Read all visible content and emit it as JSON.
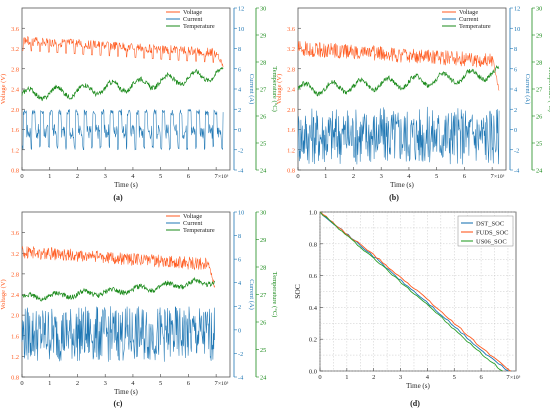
{
  "colors": {
    "voltage": "#ff5a1f",
    "current": "#1f77b4",
    "temperature": "#1a8a1a",
    "voltage_axis": "#ff5a1f",
    "current_axis": "#1f77b4",
    "temperature_axis": "#1a8a1a",
    "dst": "#1f77b4",
    "fuds": "#ff5a1f",
    "us06": "#2ca02c"
  },
  "chart_data": [
    {
      "type": "line",
      "panel_label": "(a)",
      "xlabel": "Time (s)",
      "x_multiplier": "×10³",
      "xlim": [
        0,
        7.5
      ],
      "xticks": [
        "0",
        "1",
        "2",
        "3",
        "4",
        "5",
        "6",
        "7"
      ],
      "legend": [
        "Voltage",
        "Current",
        "Temperature"
      ],
      "legend_position": "top-right",
      "axes": {
        "voltage": {
          "label": "Voltage (V)",
          "lim": [
            0.8,
            4.0
          ],
          "ticks": [
            "0.8",
            "1.2",
            "1.6",
            "2.0",
            "2.4",
            "2.8",
            "3.2",
            "3.6"
          ]
        },
        "current": {
          "label": "Current (A)",
          "lim": [
            -4,
            12
          ],
          "ticks": [
            "-4",
            "-2",
            "0",
            "2",
            "4",
            "6",
            "8",
            "10",
            "12"
          ]
        },
        "temperature": {
          "label": "Temperature (°C)",
          "lim": [
            24,
            30
          ],
          "ticks": [
            "24",
            "25",
            "26",
            "27",
            "28",
            "29",
            "30"
          ]
        }
      },
      "series": [
        {
          "name": "Voltage",
          "axis": "voltage",
          "profile": "DST",
          "start": 3.45,
          "end": 3.2,
          "band": 0.18,
          "end_drop": 2.9
        },
        {
          "name": "Current",
          "axis": "current",
          "profile": "DST",
          "low": -2,
          "high": 2
        },
        {
          "name": "Temperature",
          "axis": "temperature",
          "start": 26.8,
          "end": 27.6,
          "wave": 0.4
        }
      ]
    },
    {
      "type": "line",
      "panel_label": "(b)",
      "xlabel": "Time (s)",
      "x_multiplier": "×10³",
      "xlim": [
        0,
        7.5
      ],
      "xticks": [
        "0",
        "1",
        "2",
        "3",
        "4",
        "5",
        "6",
        "7"
      ],
      "legend": [
        "Voltage",
        "Current",
        "Temperature"
      ],
      "legend_position": "top-right",
      "axes": {
        "voltage": {
          "label": "Voltage (V)",
          "lim": [
            0.8,
            4.0
          ],
          "ticks": [
            "0.8",
            "1.2",
            "1.6",
            "2.0",
            "2.4",
            "2.8",
            "3.2",
            "3.6"
          ]
        },
        "current": {
          "label": "Current (A)",
          "lim": [
            -4,
            12
          ],
          "ticks": [
            "-4",
            "-2",
            "0",
            "2",
            "4",
            "6",
            "8",
            "10",
            "12"
          ]
        },
        "temperature": {
          "label": "Temperature (°C)",
          "lim": [
            24,
            30
          ],
          "ticks": [
            "24",
            "25",
            "26",
            "27",
            "28",
            "29",
            "30"
          ]
        }
      },
      "series": [
        {
          "name": "Voltage",
          "axis": "voltage",
          "profile": "FUDS",
          "start": 3.35,
          "end": 3.1,
          "band": 0.3,
          "end_drop": 2.4
        },
        {
          "name": "Current",
          "axis": "current",
          "profile": "FUDS",
          "low": -3.2,
          "high": 2
        },
        {
          "name": "Temperature",
          "axis": "temperature",
          "start": 27.0,
          "end": 27.6,
          "wave": 0.4
        }
      ]
    },
    {
      "type": "line",
      "panel_label": "(c)",
      "xlabel": "Time (s)",
      "x_multiplier": "×10³",
      "xlim": [
        0,
        7.5
      ],
      "xticks": [
        "0",
        "1",
        "2",
        "3",
        "4",
        "5",
        "6",
        "7"
      ],
      "legend": [
        "Voltage",
        "Current",
        "Temperature"
      ],
      "legend_position": "top-right",
      "axes": {
        "voltage": {
          "label": "Voltage (V)",
          "lim": [
            0.8,
            4.0
          ],
          "ticks": [
            "0.8",
            "1.2",
            "1.6",
            "2.0",
            "2.4",
            "2.8",
            "3.2",
            "3.6"
          ]
        },
        "current": {
          "label": "Current (A)",
          "lim": [
            -4,
            10
          ],
          "ticks": [
            "-4",
            "-2",
            "0",
            "2",
            "4",
            "6",
            "8",
            "10"
          ]
        },
        "temperature": {
          "label": "Temperature (°C)",
          "lim": [
            24,
            30
          ],
          "ticks": [
            "24",
            "25",
            "26",
            "27",
            "28",
            "29",
            "30"
          ]
        }
      },
      "series": [
        {
          "name": "Voltage",
          "axis": "voltage",
          "profile": "US06",
          "start": 3.35,
          "end": 3.1,
          "band": 0.25,
          "end_drop": 2.6
        },
        {
          "name": "Current",
          "axis": "current",
          "profile": "US06",
          "low": -2.5,
          "high": 1.8
        },
        {
          "name": "Temperature",
          "axis": "temperature",
          "start": 26.9,
          "end": 27.5,
          "wave": 0.2
        }
      ]
    },
    {
      "type": "line",
      "panel_label": "(d)",
      "xlabel": "Time (s)",
      "x_multiplier": "×10³",
      "ylabel": "SOC",
      "xlim": [
        0,
        7.3
      ],
      "ylim": [
        0.0,
        1.0
      ],
      "xticks": [
        "0",
        "1",
        "2",
        "3",
        "4",
        "5",
        "6",
        "7"
      ],
      "yticks": [
        "0.0",
        "0.2",
        "0.4",
        "0.6",
        "0.8",
        "1.0"
      ],
      "legend_position": "top-right",
      "grid": true,
      "series": [
        {
          "name": "DST_SOC",
          "x": [
            0,
            1,
            2,
            3,
            4,
            5,
            6,
            7.0
          ],
          "values": [
            1.0,
            0.86,
            0.72,
            0.57,
            0.43,
            0.28,
            0.13,
            0.0
          ]
        },
        {
          "name": "FUDS_SOC",
          "x": [
            0,
            1,
            2,
            3,
            4,
            5,
            6,
            7.1
          ],
          "values": [
            1.0,
            0.86,
            0.73,
            0.59,
            0.45,
            0.3,
            0.15,
            0.0
          ]
        },
        {
          "name": "US06_SOC",
          "x": [
            0,
            1,
            2,
            3,
            4,
            5,
            6,
            6.8
          ],
          "values": [
            1.0,
            0.85,
            0.71,
            0.56,
            0.42,
            0.26,
            0.11,
            0.0
          ]
        }
      ]
    }
  ]
}
